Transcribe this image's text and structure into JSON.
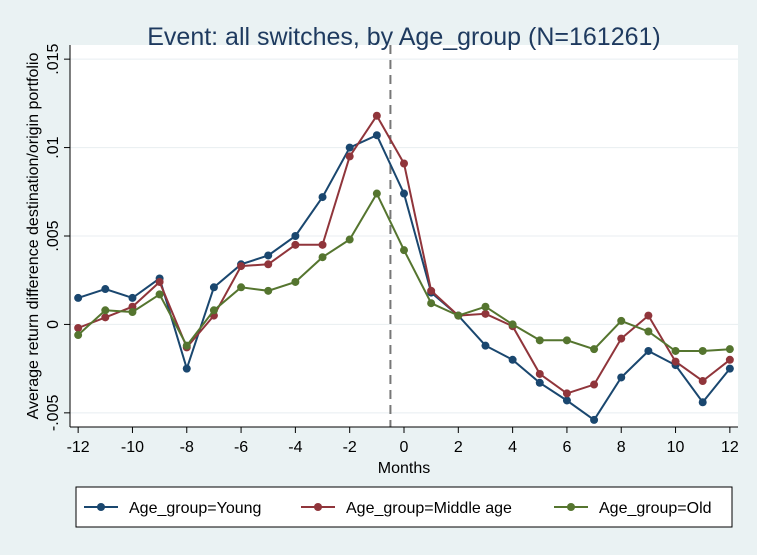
{
  "chart_data": {
    "type": "line",
    "title": "Event: all switches, by Age_group (N=161261)",
    "xlabel": "Months",
    "ylabel": "Average return difference destination/origin portfolio",
    "xlim": [
      -12.3,
      12.3
    ],
    "ylim": [
      -0.0058,
      0.0158
    ],
    "x_ticks": [
      -12,
      -10,
      -8,
      -6,
      -4,
      -2,
      0,
      2,
      4,
      6,
      8,
      10,
      12
    ],
    "x_tick_labels": [
      "-12",
      "-10",
      "-8",
      "-6",
      "-4",
      "-2",
      "0",
      "2",
      "4",
      "6",
      "8",
      "10",
      "12"
    ],
    "y_ticks": [
      -0.005,
      0,
      0.005,
      0.01,
      0.015
    ],
    "y_tick_labels": [
      "-.005",
      "0",
      ".005",
      ".01",
      ".015"
    ],
    "event_line_x": -0.5,
    "grid": "horizontal",
    "legend_position": "bottom",
    "x": [
      -12,
      -11,
      -10,
      -9,
      -8,
      -7,
      -6,
      -5,
      -4,
      -3,
      -2,
      -1,
      0,
      1,
      2,
      3,
      4,
      5,
      6,
      7,
      8,
      9,
      10,
      11,
      12
    ],
    "series": [
      {
        "name": "Age_group=Young",
        "color": "#1a476f",
        "values": [
          0.0015,
          0.002,
          0.0015,
          0.0026,
          -0.0025,
          0.0021,
          0.0034,
          0.0039,
          0.005,
          0.0072,
          0.01,
          0.0107,
          0.0074,
          0.0018,
          0.0005,
          -0.0012,
          -0.002,
          -0.0033,
          -0.0043,
          -0.0054,
          -0.003,
          -0.0015,
          -0.0023,
          -0.0044,
          -0.0025
        ]
      },
      {
        "name": "Age_group=Middle age",
        "color": "#90353b",
        "values": [
          -0.0002,
          0.0004,
          0.001,
          0.0024,
          -0.0013,
          0.0005,
          0.0033,
          0.0034,
          0.0045,
          0.0045,
          0.0095,
          0.0118,
          0.0091,
          0.0019,
          0.0005,
          0.0006,
          -0.0001,
          -0.0028,
          -0.0039,
          -0.0034,
          -0.0008,
          0.0005,
          -0.0021,
          -0.0032,
          -0.002
        ]
      },
      {
        "name": "Age_group=Old",
        "color": "#55752f",
        "values": [
          -0.0006,
          0.0008,
          0.0007,
          0.0017,
          -0.0012,
          0.0008,
          0.0021,
          0.0019,
          0.0024,
          0.0038,
          0.0048,
          0.0074,
          0.0042,
          0.0012,
          0.0005,
          0.001,
          0.0,
          -0.0009,
          -0.0009,
          -0.0014,
          0.0002,
          -0.0004,
          -0.0015,
          -0.0015,
          -0.0014
        ]
      }
    ]
  }
}
